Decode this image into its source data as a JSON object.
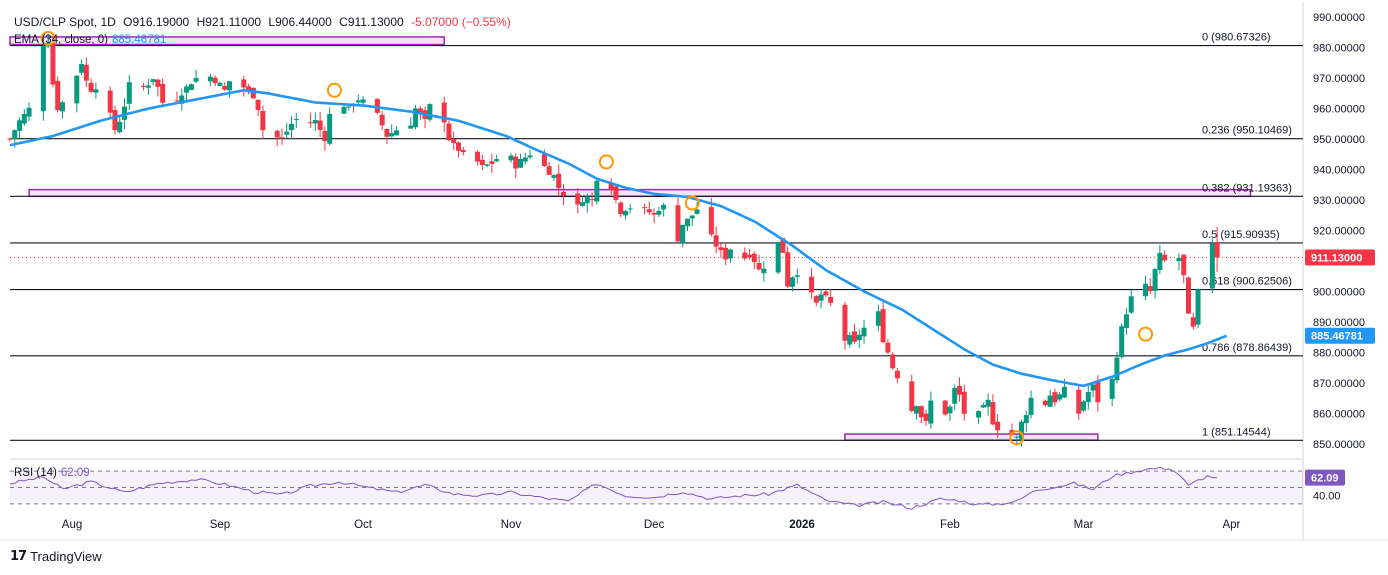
{
  "header": {
    "symbol": "USD/CLP Spot, 1D",
    "open": "O916.19000",
    "high": "H921.11000",
    "low": "L906.44000",
    "close": "C911.13000",
    "change": "-5.07000 (−0.55%)"
  },
  "ema_legend": {
    "label": "EMA (34, close, 0)",
    "value": "885.46781"
  },
  "rsi_legend": {
    "label": "RSI (14)",
    "value": "62.09"
  },
  "branding": {
    "logo_text": "TradingView"
  },
  "colors": {
    "up": "#089981",
    "down": "#f23645",
    "ema": "#2196f3",
    "fib": "#131722",
    "zone": "#9c27b0",
    "rsi": "#7e57c2",
    "marker": "#ff9800",
    "ema_tag": "#2196f3"
  },
  "chart_data": {
    "type": "candlestick",
    "title": "USD/CLP Spot, 1D",
    "ylim": [
      846,
      993
    ],
    "y_ticks": [
      "990.00000",
      "980.00000",
      "970.00000",
      "960.00000",
      "950.00000",
      "940.00000",
      "930.00000",
      "920.00000",
      "910.00000",
      "900.00000",
      "890.00000",
      "880.00000",
      "870.00000",
      "860.00000",
      "850.00000"
    ],
    "x_ticks": [
      {
        "label": "Aug",
        "day": 14
      },
      {
        "label": "Sep",
        "day": 45
      },
      {
        "label": "Oct",
        "day": 75
      },
      {
        "label": "Nov",
        "day": 106
      },
      {
        "label": "Dec",
        "day": 136
      },
      {
        "label": "2026",
        "day": 167
      },
      {
        "label": "Feb",
        "day": 198
      },
      {
        "label": "Mar",
        "day": 226
      },
      {
        "label": "Apr",
        "day": 257
      }
    ],
    "day_range": [
      1,
      272
    ],
    "last_price": "911.13000",
    "last_price_value": 911.13,
    "ema_value": "885.46781",
    "ema_value_num": 885.47,
    "fib_levels": [
      {
        "ratio": "0",
        "value": 980.67326,
        "label": "0 (980.67326)"
      },
      {
        "ratio": "0.236",
        "value": 950.10469,
        "label": "0.236 (950.10469)"
      },
      {
        "ratio": "0.382",
        "value": 931.19363,
        "label": "0.382 (931.19363)"
      },
      {
        "ratio": "0.5",
        "value": 915.90935,
        "label": "0.5 (915.90935)"
      },
      {
        "ratio": "0.618",
        "value": 900.62506,
        "label": "0.618 (900.62506)"
      },
      {
        "ratio": "0.786",
        "value": 878.86439,
        "label": "0.786 (878.86439)"
      },
      {
        "ratio": "1",
        "value": 851.14544,
        "label": "1 (851.14544)"
      }
    ],
    "zones": [
      {
        "from_day": 1,
        "to_day": 92,
        "y_low": 981.0,
        "y_high": 983.5
      },
      {
        "from_day": 5,
        "to_day": 261,
        "y_low": 931.2,
        "y_high": 933.4
      },
      {
        "from_day": 176,
        "to_day": 229,
        "y_low": 851.2,
        "y_high": 853.2
      }
    ],
    "markers": [
      {
        "day": 9,
        "price": 983.0
      },
      {
        "day": 69,
        "price": 966.0
      },
      {
        "day": 126,
        "price": 942.5
      },
      {
        "day": 144,
        "price": 929.0
      },
      {
        "day": 212,
        "price": 852.0
      },
      {
        "day": 239,
        "price": 886.0
      }
    ],
    "candle_anchors": [
      [
        1,
        950
      ],
      [
        3,
        956
      ],
      [
        5,
        960
      ],
      [
        6,
        968
      ],
      [
        7,
        975
      ],
      [
        8,
        981
      ],
      [
        9,
        982
      ],
      [
        10,
        968
      ],
      [
        11,
        960
      ],
      [
        12,
        962
      ],
      [
        14,
        965
      ],
      [
        15,
        971
      ],
      [
        16,
        975
      ],
      [
        17,
        969
      ],
      [
        18,
        966
      ],
      [
        19,
        967
      ],
      [
        20,
        965
      ],
      [
        21,
        961
      ],
      [
        22,
        958
      ],
      [
        23,
        953
      ],
      [
        24,
        956
      ],
      [
        25,
        961
      ],
      [
        26,
        968
      ],
      [
        27,
        970
      ],
      [
        28,
        966
      ],
      [
        30,
        968
      ],
      [
        31,
        970
      ],
      [
        32,
        967
      ],
      [
        33,
        962
      ],
      [
        34,
        959
      ],
      [
        36,
        963
      ],
      [
        38,
        967
      ],
      [
        40,
        970
      ],
      [
        42,
        972
      ],
      [
        44,
        969
      ],
      [
        45,
        968
      ],
      [
        46,
        966
      ],
      [
        47,
        969
      ],
      [
        48,
        967
      ],
      [
        50,
        967
      ],
      [
        52,
        964
      ],
      [
        53,
        960
      ],
      [
        54,
        953
      ],
      [
        55,
        954
      ],
      [
        56,
        951
      ],
      [
        58,
        950
      ],
      [
        60,
        955
      ],
      [
        62,
        958
      ],
      [
        63,
        955
      ],
      [
        65,
        956
      ],
      [
        66,
        953
      ],
      [
        67,
        950
      ],
      [
        68,
        958
      ],
      [
        69,
        965
      ],
      [
        70,
        962
      ],
      [
        72,
        960
      ],
      [
        74,
        963
      ],
      [
        76,
        962
      ],
      [
        78,
        958
      ],
      [
        80,
        951
      ],
      [
        82,
        953
      ],
      [
        84,
        950
      ],
      [
        85,
        955
      ],
      [
        86,
        960
      ],
      [
        87,
        958
      ],
      [
        88,
        956
      ],
      [
        89,
        961
      ],
      [
        90,
        959
      ],
      [
        92,
        956
      ],
      [
        93,
        950
      ],
      [
        94,
        948
      ],
      [
        96,
        945
      ],
      [
        98,
        944
      ],
      [
        100,
        941
      ],
      [
        102,
        942
      ],
      [
        104,
        945
      ],
      [
        106,
        944
      ],
      [
        107,
        941
      ],
      [
        108,
        943
      ],
      [
        110,
        945
      ],
      [
        111,
        944
      ],
      [
        112,
        945
      ],
      [
        113,
        941
      ],
      [
        114,
        939
      ],
      [
        115,
        938
      ],
      [
        116,
        934
      ],
      [
        117,
        932
      ],
      [
        118,
        926
      ],
      [
        119,
        929
      ],
      [
        120,
        928
      ],
      [
        121,
        930
      ],
      [
        122,
        931
      ],
      [
        123,
        930
      ],
      [
        124,
        937
      ],
      [
        125,
        941
      ],
      [
        126,
        940
      ],
      [
        127,
        934
      ],
      [
        128,
        930
      ],
      [
        129,
        926
      ],
      [
        130,
        927
      ],
      [
        132,
        928
      ],
      [
        134,
        927
      ],
      [
        136,
        925
      ],
      [
        137,
        927
      ],
      [
        138,
        928
      ],
      [
        139,
        924
      ],
      [
        140,
        919
      ],
      [
        141,
        917
      ],
      [
        142,
        922
      ],
      [
        144,
        925
      ],
      [
        145,
        927
      ],
      [
        146,
        926
      ],
      [
        147,
        922
      ],
      [
        148,
        918
      ],
      [
        149,
        915
      ],
      [
        150,
        913
      ],
      [
        151,
        911
      ],
      [
        152,
        914
      ],
      [
        153,
        917
      ],
      [
        154,
        917
      ],
      [
        155,
        911
      ],
      [
        156,
        912
      ],
      [
        157,
        910
      ],
      [
        158,
        907
      ],
      [
        159,
        908
      ],
      [
        160,
        906
      ],
      [
        161,
        909
      ],
      [
        162,
        916
      ],
      [
        163,
        913
      ],
      [
        164,
        902
      ],
      [
        165,
        905
      ],
      [
        166,
        906
      ],
      [
        167,
        904
      ],
      [
        168,
        901
      ],
      [
        169,
        899
      ],
      [
        170,
        896
      ],
      [
        171,
        899
      ],
      [
        172,
        898
      ],
      [
        173,
        896
      ],
      [
        174,
        888
      ],
      [
        175,
        887
      ],
      [
        176,
        884
      ],
      [
        177,
        885
      ],
      [
        178,
        883
      ],
      [
        179,
        886
      ],
      [
        180,
        888
      ],
      [
        181,
        885
      ],
      [
        182,
        890
      ],
      [
        183,
        893
      ],
      [
        184,
        884
      ],
      [
        185,
        880
      ],
      [
        186,
        875
      ],
      [
        187,
        872
      ],
      [
        188,
        868
      ],
      [
        189,
        866
      ],
      [
        190,
        861
      ],
      [
        191,
        863
      ],
      [
        192,
        859
      ],
      [
        193,
        857
      ],
      [
        194,
        864
      ],
      [
        195,
        868
      ],
      [
        196,
        866
      ],
      [
        197,
        860
      ],
      [
        198,
        862
      ],
      [
        199,
        868
      ],
      [
        200,
        866
      ],
      [
        201,
        860
      ],
      [
        202,
        861
      ],
      [
        203,
        859
      ],
      [
        204,
        860
      ],
      [
        205,
        862
      ],
      [
        206,
        864
      ],
      [
        207,
        857
      ],
      [
        208,
        855
      ],
      [
        209,
        853
      ],
      [
        210,
        855
      ],
      [
        211,
        853
      ],
      [
        212,
        852
      ],
      [
        213,
        857
      ],
      [
        214,
        860
      ],
      [
        215,
        865
      ],
      [
        216,
        861
      ],
      [
        217,
        864
      ],
      [
        218,
        863
      ],
      [
        219,
        866
      ],
      [
        220,
        864
      ],
      [
        221,
        866
      ],
      [
        222,
        868
      ],
      [
        223,
        865
      ],
      [
        224,
        861
      ],
      [
        225,
        860
      ],
      [
        226,
        864
      ],
      [
        227,
        867
      ],
      [
        228,
        869
      ],
      [
        229,
        864
      ],
      [
        230,
        862
      ],
      [
        231,
        860
      ],
      [
        232,
        871
      ],
      [
        233,
        879
      ],
      [
        234,
        888
      ],
      [
        235,
        893
      ],
      [
        236,
        898
      ],
      [
        237,
        903
      ],
      [
        238,
        906
      ],
      [
        239,
        902
      ],
      [
        240,
        900
      ],
      [
        241,
        907
      ],
      [
        242,
        912
      ],
      [
        243,
        910
      ],
      [
        244,
        916
      ],
      [
        245,
        918
      ],
      [
        246,
        911
      ],
      [
        247,
        905
      ],
      [
        248,
        892
      ],
      [
        249,
        888
      ],
      [
        250,
        900
      ],
      [
        251,
        912
      ],
      [
        252,
        914
      ],
      [
        253,
        916
      ],
      [
        254,
        911.13
      ]
    ],
    "ema_anchors": [
      [
        1,
        948
      ],
      [
        10,
        951
      ],
      [
        20,
        956
      ],
      [
        30,
        960
      ],
      [
        40,
        963
      ],
      [
        50,
        966
      ],
      [
        55,
        965
      ],
      [
        65,
        962
      ],
      [
        75,
        961
      ],
      [
        85,
        959
      ],
      [
        95,
        956
      ],
      [
        105,
        951
      ],
      [
        112,
        946
      ],
      [
        118,
        942
      ],
      [
        124,
        937
      ],
      [
        130,
        934
      ],
      [
        136,
        932
      ],
      [
        143,
        931
      ],
      [
        150,
        928
      ],
      [
        157,
        923
      ],
      [
        165,
        915
      ],
      [
        172,
        907
      ],
      [
        180,
        900
      ],
      [
        188,
        894
      ],
      [
        195,
        887
      ],
      [
        201,
        881
      ],
      [
        207,
        876
      ],
      [
        213,
        873
      ],
      [
        219,
        871
      ],
      [
        226,
        869
      ],
      [
        232,
        872
      ],
      [
        238,
        876
      ],
      [
        243,
        879
      ],
      [
        248,
        881
      ],
      [
        252,
        883
      ],
      [
        256,
        885.47
      ]
    ],
    "rsi": {
      "ylim": [
        20,
        80
      ],
      "levels": [
        70,
        50,
        30
      ],
      "value": "62.09",
      "tick": "40.00",
      "anchors": [
        [
          1,
          55
        ],
        [
          8,
          63
        ],
        [
          12,
          48
        ],
        [
          18,
          57
        ],
        [
          25,
          44
        ],
        [
          32,
          55
        ],
        [
          40,
          60
        ],
        [
          46,
          54
        ],
        [
          52,
          45
        ],
        [
          58,
          41
        ],
        [
          64,
          52
        ],
        [
          70,
          57
        ],
        [
          76,
          50
        ],
        [
          82,
          44
        ],
        [
          88,
          53
        ],
        [
          94,
          42
        ],
        [
          100,
          40
        ],
        [
          106,
          44
        ],
        [
          112,
          38
        ],
        [
          118,
          33
        ],
        [
          124,
          55
        ],
        [
          130,
          40
        ],
        [
          136,
          38
        ],
        [
          142,
          45
        ],
        [
          148,
          36
        ],
        [
          154,
          40
        ],
        [
          160,
          42
        ],
        [
          166,
          53
        ],
        [
          172,
          34
        ],
        [
          178,
          28
        ],
        [
          184,
          32
        ],
        [
          190,
          25
        ],
        [
          196,
          36
        ],
        [
          200,
          34
        ],
        [
          204,
          29
        ],
        [
          208,
          30
        ],
        [
          212,
          33
        ],
        [
          216,
          47
        ],
        [
          220,
          51
        ],
        [
          224,
          55
        ],
        [
          228,
          48
        ],
        [
          232,
          64
        ],
        [
          236,
          69
        ],
        [
          240,
          73
        ],
        [
          244,
          74
        ],
        [
          246,
          66
        ],
        [
          248,
          52
        ],
        [
          250,
          59
        ],
        [
          252,
          64
        ],
        [
          254,
          62.09
        ]
      ]
    }
  }
}
